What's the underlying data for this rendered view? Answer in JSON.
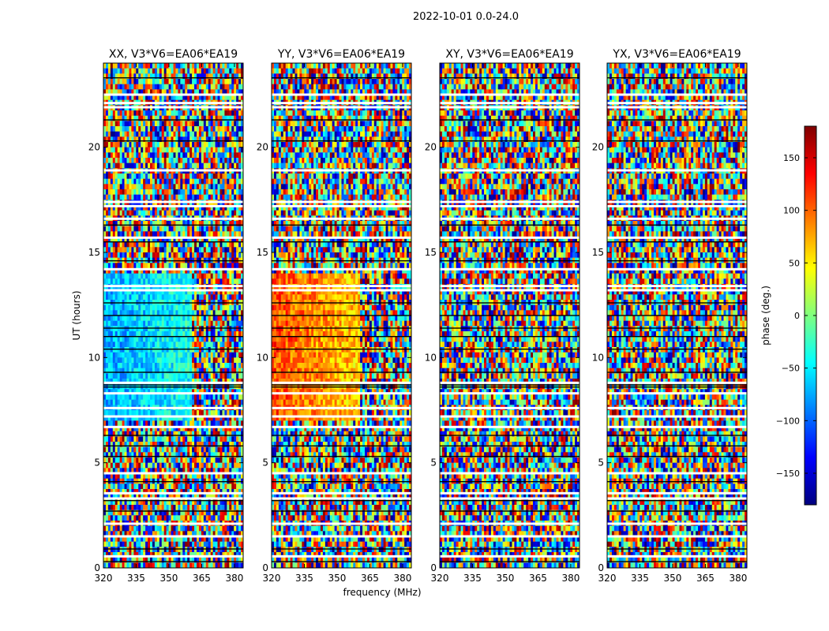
{
  "figure": {
    "suptitle": "2022-10-01 0.0-24.0",
    "ylabel": "UT (hours)",
    "xlabel": "frequency (MHz)"
  },
  "colorbar": {
    "label": "phase (deg.)",
    "range": [
      -180,
      180
    ],
    "ticks": [
      150,
      100,
      50,
      0,
      -50,
      -100,
      -150
    ],
    "tick_labels": [
      "150",
      "100",
      "50",
      "0",
      "−50",
      "−100",
      "−150"
    ],
    "colormap": "jet",
    "colors": [
      "#00007f",
      "#0000ff",
      "#007fff",
      "#00ffff",
      "#7fff7f",
      "#ffff00",
      "#ff7f00",
      "#ff0000",
      "#7f0000"
    ]
  },
  "chart_data": {
    "type": "heatmap",
    "shared": {
      "x_range": [
        320,
        384
      ],
      "x_ticks": [
        320,
        335,
        350,
        365,
        380
      ],
      "x_tick_labels": [
        "320",
        "335",
        "350",
        "365",
        "380"
      ],
      "y_range": [
        0,
        24
      ],
      "y_ticks": [
        0,
        5,
        10,
        15,
        20
      ],
      "y_tick_labels": [
        "0",
        "5",
        "10",
        "15",
        "20"
      ],
      "value": "phase (deg.)",
      "value_range": [
        -180,
        180
      ]
    },
    "panels": [
      {
        "title": "XX, V3*V6=EA06*EA19",
        "coherent_band": {
          "x_end": 360,
          "y_range": [
            7,
            14
          ],
          "phase": -75
        }
      },
      {
        "title": "YY, V3*V6=EA06*EA19",
        "coherent_band": {
          "x_end": 361,
          "y_range": [
            7,
            14
          ],
          "phase": 110
        }
      },
      {
        "title": "XY, V3*V6=EA06*EA19",
        "coherent_band": null
      },
      {
        "title": "YX, V3*V6=EA06*EA19",
        "coherent_band": null
      }
    ],
    "flagged_rows_ut": [
      0.55,
      1.5,
      2.1,
      3.3,
      3.55,
      4.5,
      6.7,
      7.2,
      7.6,
      8.3,
      8.8,
      13.2,
      13.4,
      14.2,
      15.7,
      16.6,
      17.2,
      17.4,
      18.9,
      21.9,
      22.1,
      22.5
    ],
    "black_rows_ut": [
      0.3,
      0.9,
      2.7,
      3.2,
      4.1,
      5.3,
      5.8,
      6.3,
      8.6,
      8.7,
      9.3,
      10.4,
      11.0,
      11.4,
      12.0,
      12.6,
      14.6,
      15.5,
      16.3,
      20.3,
      21.3,
      23.3
    ]
  }
}
